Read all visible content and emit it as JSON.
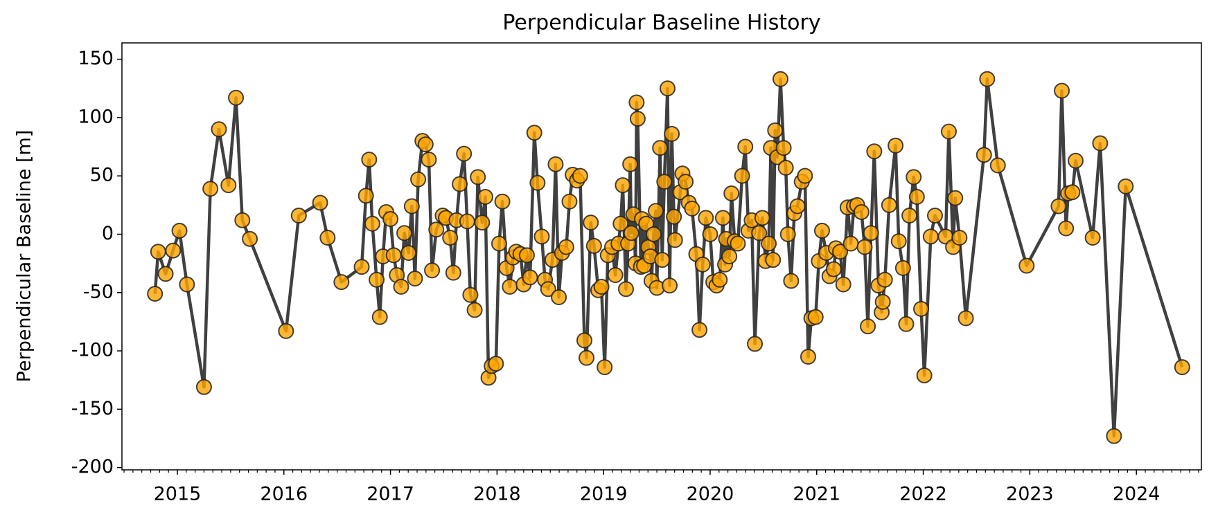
{
  "chart_data": {
    "type": "line",
    "title": "Perpendicular Baseline History",
    "y_label": "Perpendicular Baseline [m]",
    "line_color": "#404040",
    "marker_color": "#ffa500",
    "marker_edge_color": "#222222",
    "xlim": [
      2014.48,
      2024.61
    ],
    "xticks": [
      2015,
      2016,
      2017,
      2018,
      2019,
      2020,
      2021,
      2022,
      2023,
      2024
    ],
    "ylim": [
      -202,
      164
    ],
    "yticks": [
      -200,
      -150,
      -100,
      -50,
      0,
      50,
      100,
      150
    ],
    "grid": false,
    "x": [
      2014.79,
      2014.82,
      2014.89,
      2014.96,
      2015.02,
      2015.09,
      2015.25,
      2015.31,
      2015.39,
      2015.48,
      2015.55,
      2015.61,
      2015.68,
      2016.02,
      2016.14,
      2016.34,
      2016.41,
      2016.54,
      2016.73,
      2016.77,
      2016.8,
      2016.83,
      2016.87,
      2016.9,
      2016.93,
      2016.96,
      2017.0,
      2017.03,
      2017.06,
      2017.1,
      2017.13,
      2017.17,
      2017.2,
      2017.23,
      2017.26,
      2017.3,
      2017.33,
      2017.36,
      2017.39,
      2017.43,
      2017.49,
      2017.52,
      2017.56,
      2017.59,
      2017.62,
      2017.65,
      2017.69,
      2017.72,
      2017.75,
      2017.79,
      2017.82,
      2017.86,
      2017.89,
      2017.92,
      2017.95,
      2017.99,
      2018.02,
      2018.05,
      2018.09,
      2018.12,
      2018.15,
      2018.18,
      2018.22,
      2018.25,
      2018.28,
      2018.31,
      2018.35,
      2018.38,
      2018.42,
      2018.45,
      2018.48,
      2018.52,
      2018.55,
      2018.58,
      2018.61,
      2018.65,
      2018.68,
      2018.71,
      2018.75,
      2018.78,
      2018.82,
      2018.84,
      2018.88,
      2018.91,
      2018.95,
      2018.98,
      2019.01,
      2019.04,
      2019.08,
      2019.11,
      2019.14,
      2019.16,
      2019.18,
      2019.21,
      2019.23,
      2019.25,
      2019.26,
      2019.28,
      2019.3,
      2019.31,
      2019.32,
      2019.35,
      2019.36,
      2019.38,
      2019.4,
      2019.42,
      2019.44,
      2019.45,
      2019.47,
      2019.49,
      2019.5,
      2019.53,
      2019.55,
      2019.57,
      2019.6,
      2019.62,
      2019.64,
      2019.66,
      2019.67,
      2019.72,
      2019.74,
      2019.77,
      2019.8,
      2019.83,
      2019.87,
      2019.9,
      2019.93,
      2019.96,
      2020.0,
      2020.03,
      2020.06,
      2020.09,
      2020.12,
      2020.14,
      2020.15,
      2020.18,
      2020.2,
      2020.23,
      2020.26,
      2020.3,
      2020.33,
      2020.36,
      2020.39,
      2020.42,
      2020.46,
      2020.49,
      2020.52,
      2020.55,
      2020.57,
      2020.59,
      2020.61,
      2020.63,
      2020.66,
      2020.69,
      2020.71,
      2020.73,
      2020.76,
      2020.79,
      2020.82,
      2020.86,
      2020.89,
      2020.92,
      2020.95,
      2020.99,
      2021.02,
      2021.05,
      2021.09,
      2021.12,
      2021.16,
      2021.18,
      2021.22,
      2021.25,
      2021.29,
      2021.32,
      2021.35,
      2021.38,
      2021.42,
      2021.45,
      2021.48,
      2021.51,
      2021.54,
      2021.58,
      2021.61,
      2021.62,
      2021.64,
      2021.68,
      2021.74,
      2021.77,
      2021.81,
      2021.84,
      2021.87,
      2021.91,
      2021.94,
      2021.98,
      2022.01,
      2022.07,
      2022.11,
      2022.21,
      2022.24,
      2022.28,
      2022.3,
      2022.34,
      2022.4,
      2022.57,
      2022.6,
      2022.7,
      2022.97,
      2023.27,
      2023.3,
      2023.34,
      2023.36,
      2023.4,
      2023.43,
      2023.59,
      2023.66,
      2023.79,
      2023.9,
      2024.43
    ],
    "values": [
      -51,
      -15,
      -34,
      -14,
      3,
      -43,
      -131,
      39,
      90,
      42,
      117,
      12,
      -4,
      -83,
      16,
      27,
      -3,
      -41,
      -28,
      33,
      64,
      9,
      -39,
      -71,
      -19,
      19,
      13,
      -18,
      -35,
      -45,
      1,
      -16,
      24,
      -38,
      47,
      80,
      77,
      64,
      -31,
      4,
      16,
      14,
      -3,
      -33,
      12,
      43,
      69,
      11,
      -52,
      -65,
      49,
      10,
      32,
      -123,
      -113,
      -111,
      -8,
      28,
      -29,
      -45,
      -20,
      -15,
      -17,
      -43,
      -18,
      -37,
      87,
      44,
      -2,
      -39,
      -47,
      -22,
      60,
      -54,
      -16,
      -11,
      28,
      51,
      46,
      50,
      -91,
      -106,
      10,
      -10,
      -48,
      -45,
      -114,
      -18,
      -11,
      -35,
      -8,
      9,
      42,
      -47,
      -8,
      60,
      1,
      17,
      -25,
      113,
      99,
      -28,
      13,
      -27,
      9,
      -11,
      -19,
      -40,
      0,
      20,
      -46,
      74,
      -22,
      45,
      125,
      -44,
      86,
      15,
      -5,
      36,
      52,
      45,
      27,
      22,
      -17,
      -82,
      -26,
      14,
      0,
      -41,
      -44,
      -39,
      14,
      -26,
      -4,
      -19,
      35,
      -6,
      -8,
      50,
      75,
      3,
      12,
      -94,
      1,
      14,
      -23,
      -8,
      74,
      -22,
      89,
      66,
      133,
      74,
      57,
      0,
      -40,
      18,
      24,
      45,
      50,
      -105,
      -72,
      -71,
      -23,
      3,
      -16,
      -36,
      -30,
      -12,
      -15,
      -43,
      23,
      -8,
      24,
      25,
      19,
      -11,
      -79,
      1,
      71,
      -44,
      -67,
      -58,
      -39,
      25,
      76,
      -6,
      -29,
      -77,
      16,
      49,
      32,
      -64,
      -121,
      -2,
      16,
      -2,
      88,
      -11,
      31,
      -3,
      -72,
      68,
      133,
      59,
      -27,
      24,
      123,
      5,
      35,
      36,
      63,
      -3,
      78,
      -173,
      41,
      -114
    ]
  }
}
